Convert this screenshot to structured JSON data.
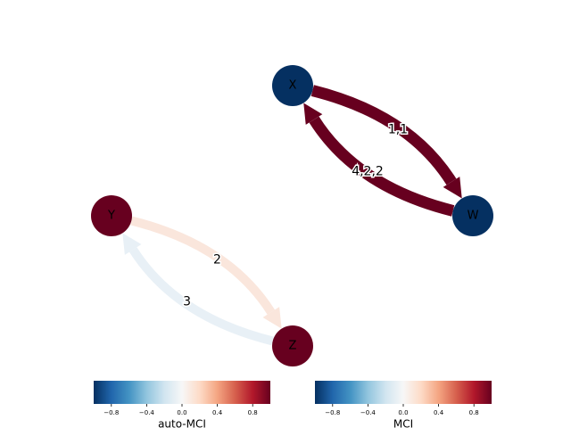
{
  "nodes": [
    {
      "label": "X",
      "color": "#053061"
    },
    {
      "label": "W",
      "color": "#053061"
    },
    {
      "label": "Y",
      "color": "#67001f"
    },
    {
      "label": "Z",
      "color": "#67001f"
    }
  ],
  "edges": [
    {
      "from": 0,
      "to": 1,
      "label": "1,1",
      "color": "#67001f"
    },
    {
      "from": 1,
      "to": 0,
      "label": "4,2,2",
      "color": "#67001f"
    },
    {
      "from": 2,
      "to": 3,
      "label": "2",
      "color": "#fae6dc"
    },
    {
      "from": 3,
      "to": 2,
      "label": "3",
      "color": "#e8f0f6"
    }
  ],
  "colorbars": [
    {
      "label": "auto-MCI",
      "lim": [
        -1,
        1
      ],
      "ticks": [
        {
          "value": -0.8,
          "label": "−0.8"
        },
        {
          "value": -0.4,
          "label": "−0.4"
        },
        {
          "value": 0,
          "label": "0.0"
        },
        0.4,
        0.8
      ]
    },
    {
      "label": "MCI",
      "lim": [
        -1,
        1
      ],
      "ticks": [
        {
          "value": -0.8,
          "label": "−0.8"
        },
        {
          "value": -0.4,
          "label": "−0.4"
        },
        {
          "value": 0,
          "label": "0.0"
        },
        0.4,
        0.8
      ]
    }
  ]
}
